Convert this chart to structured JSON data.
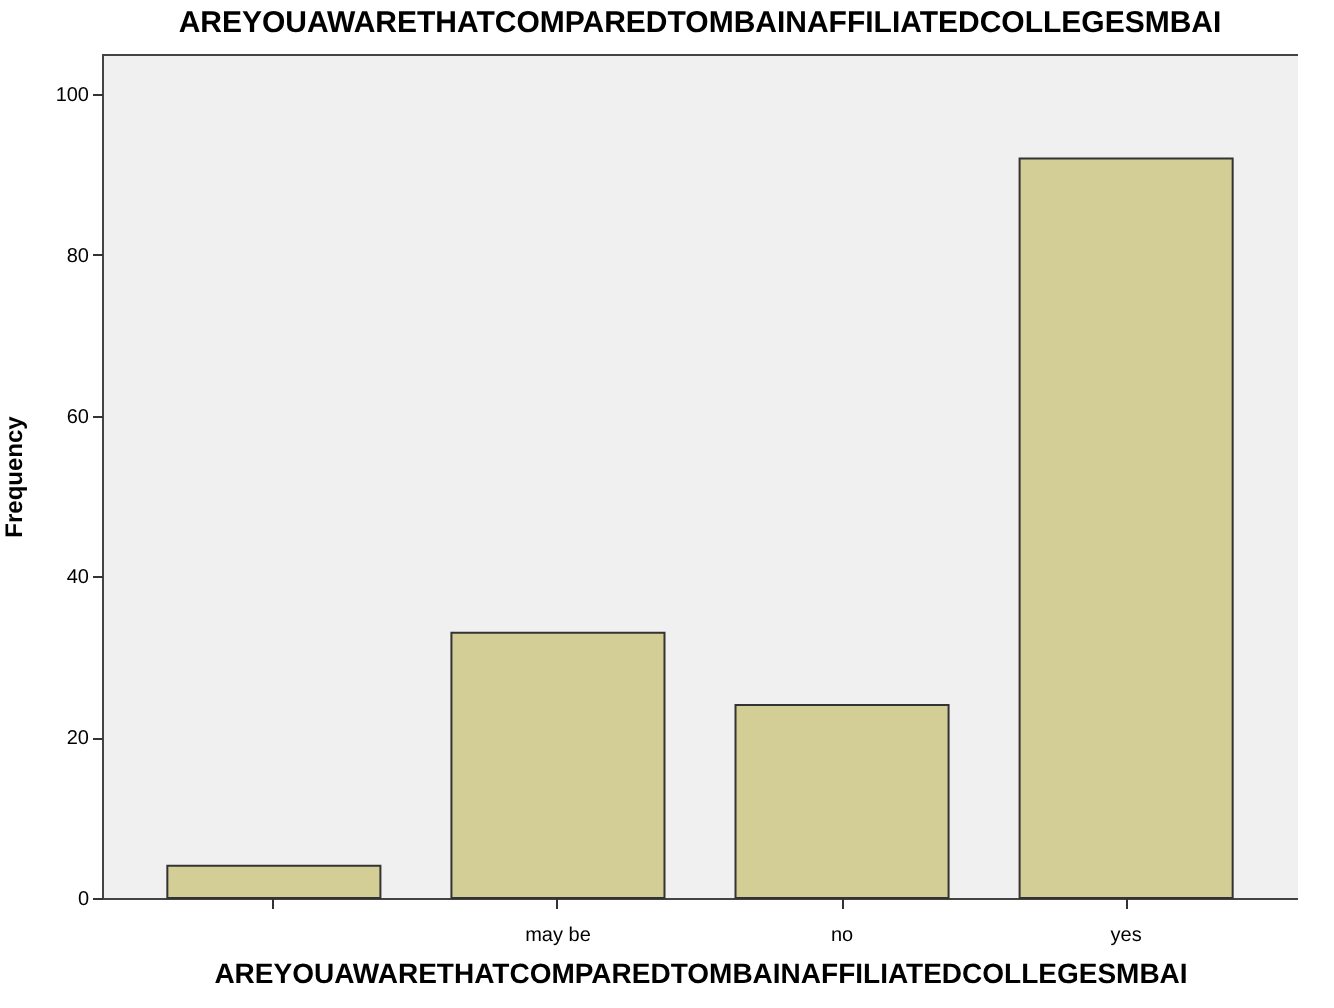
{
  "chart_data": {
    "type": "bar",
    "title": "AREYOUAWARETHATCOMPAREDTOMBAINAFFILIATEDCOLLEGESMBAI",
    "xlabel": "AREYOUAWARETHATCOMPAREDTOMBAINAFFILIATEDCOLLEGESMBAI",
    "ylabel": "Frequency",
    "categories": [
      null,
      "may be",
      "no",
      "yes"
    ],
    "values": [
      4,
      33,
      24,
      92
    ],
    "color": "#d3cd96",
    "ylim": [
      0,
      105
    ],
    "yticks": [
      0,
      20,
      40,
      60,
      80,
      100
    ],
    "grid": false
  }
}
